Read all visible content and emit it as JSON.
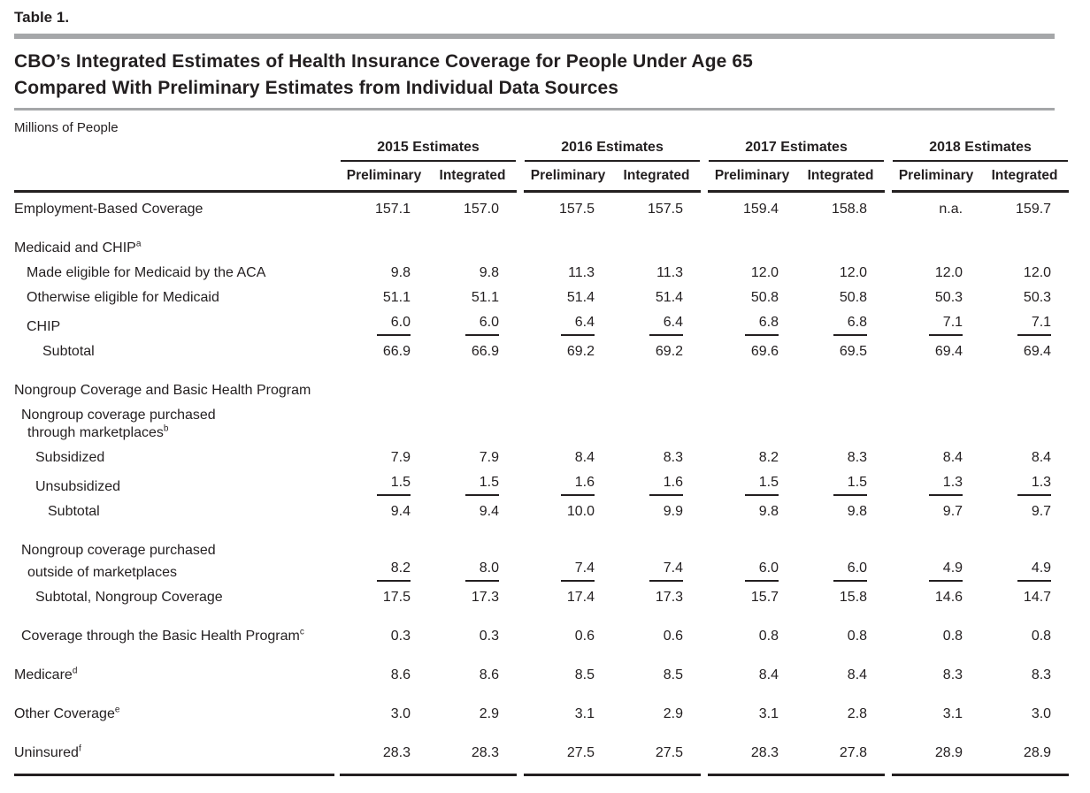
{
  "page": {
    "table_label": "Table 1.",
    "title_line1": "CBO’s Integrated Estimates of Health Insurance Coverage for People Under Age 65",
    "title_line2": "Compared With Preliminary Estimates from Individual Data Sources",
    "units_label": "Millions of People"
  },
  "header": {
    "column_groups": [
      "2015 Estimates",
      "2016 Estimates",
      "2017 Estimates",
      "2018 Estimates"
    ],
    "subcolumns": [
      "Preliminary",
      "Integrated"
    ]
  },
  "colors": {
    "text": "#231f20",
    "dark_rule": "#231f20",
    "gray_rule": "#a5a7a9"
  },
  "rows": [
    {
      "label": "Employment-Based Coverage",
      "sup": "",
      "indent": 0,
      "values": [
        "157.1",
        "157.0",
        "157.5",
        "157.5",
        "159.4",
        "158.8",
        "n.a.",
        "159.7"
      ]
    },
    {
      "label": "Medicaid and CHIP",
      "sup": "a",
      "indent": 0,
      "section": true,
      "values": []
    },
    {
      "label": "Made eligible for Medicaid by the ACA",
      "sup": "",
      "indent": 14,
      "values": [
        "9.8",
        "9.8",
        "11.3",
        "11.3",
        "12.0",
        "12.0",
        "12.0",
        "12.0"
      ]
    },
    {
      "label": "Otherwise eligible for Medicaid",
      "sup": "",
      "indent": 14,
      "values": [
        "51.1",
        "51.1",
        "51.4",
        "51.4",
        "50.8",
        "50.8",
        "50.3",
        "50.3"
      ]
    },
    {
      "label": "CHIP",
      "sup": "",
      "indent": 14,
      "addend": true,
      "values": [
        "6.0",
        "6.0",
        "6.4",
        "6.4",
        "6.8",
        "6.8",
        "7.1",
        "7.1"
      ]
    },
    {
      "label": "Subtotal",
      "sup": "",
      "indent": 32,
      "values": [
        "66.9",
        "66.9",
        "69.2",
        "69.2",
        "69.6",
        "69.5",
        "69.4",
        "69.4"
      ]
    },
    {
      "label": "Nongroup Coverage and Basic Health Program",
      "sup": "",
      "indent": 0,
      "section": true,
      "values": []
    },
    {
      "label": "Nongroup coverage purchased",
      "sup": "",
      "indent": 8,
      "values": []
    },
    {
      "label": "through marketplaces",
      "sup": "b",
      "indent": 15,
      "wrap": true,
      "values": []
    },
    {
      "label": "Subsidized",
      "sup": "",
      "indent": 24,
      "values": [
        "7.9",
        "7.9",
        "8.4",
        "8.3",
        "8.2",
        "8.3",
        "8.4",
        "8.4"
      ]
    },
    {
      "label": "Unsubsidized",
      "sup": "",
      "indent": 24,
      "addend": true,
      "values": [
        "1.5",
        "1.5",
        "1.6",
        "1.6",
        "1.5",
        "1.5",
        "1.3",
        "1.3"
      ]
    },
    {
      "label": "Subtotal",
      "sup": "",
      "indent": 38,
      "values": [
        "9.4",
        "9.4",
        "10.0",
        "9.9",
        "9.8",
        "9.8",
        "9.7",
        "9.7"
      ]
    },
    {
      "label": "Nongroup coverage purchased",
      "sup": "",
      "indent": 8,
      "section": true,
      "values": []
    },
    {
      "label": "outside of marketplaces",
      "sup": "",
      "indent": 15,
      "wrap": true,
      "addend": true,
      "values": [
        "8.2",
        "8.0",
        "7.4",
        "7.4",
        "6.0",
        "6.0",
        "4.9",
        "4.9"
      ]
    },
    {
      "label": "Subtotal, Nongroup Coverage",
      "sup": "",
      "indent": 24,
      "values": [
        "17.5",
        "17.3",
        "17.4",
        "17.3",
        "15.7",
        "15.8",
        "14.6",
        "14.7"
      ]
    },
    {
      "label": "Coverage through the Basic Health Program",
      "sup": "c",
      "indent": 8,
      "section": true,
      "values": [
        "0.3",
        "0.3",
        "0.6",
        "0.6",
        "0.8",
        "0.8",
        "0.8",
        "0.8"
      ]
    },
    {
      "label": "Medicare",
      "sup": "d",
      "indent": 0,
      "section": true,
      "values": [
        "8.6",
        "8.6",
        "8.5",
        "8.5",
        "8.4",
        "8.4",
        "8.3",
        "8.3"
      ]
    },
    {
      "label": "Other Coverage",
      "sup": "e",
      "indent": 0,
      "section": true,
      "values": [
        "3.0",
        "2.9",
        "3.1",
        "2.9",
        "3.1",
        "2.8",
        "3.1",
        "3.0"
      ]
    },
    {
      "label": "Uninsured",
      "sup": "f",
      "indent": 0,
      "section": true,
      "values": [
        "28.3",
        "28.3",
        "27.5",
        "27.5",
        "28.3",
        "27.8",
        "28.9",
        "28.9"
      ]
    }
  ]
}
